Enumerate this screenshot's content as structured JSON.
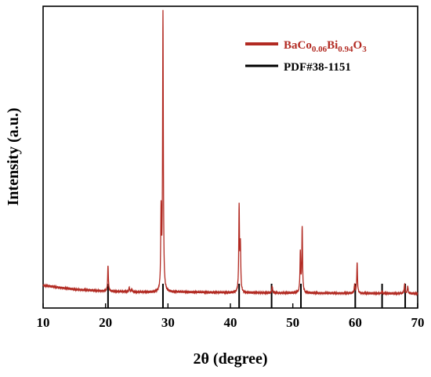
{
  "chart_data": {
    "type": "line",
    "xlabel": "2θ (degree)",
    "ylabel": "Intensity (a.u.)",
    "xlim": [
      10,
      70
    ],
    "xticks": [
      10,
      20,
      30,
      40,
      50,
      60,
      70
    ],
    "ylim": [
      0,
      100
    ],
    "y_ticks_shown": false,
    "grid": false,
    "legend_position": "top-right",
    "legend": {
      "sample": {
        "base": "BaCo",
        "sub1": "0.06",
        "mid": "Bi",
        "sub2": "0.94",
        "end": "O",
        "sub3": "3"
      },
      "reference": "PDF#38-1151"
    },
    "colors": {
      "sample": "#b22a22",
      "reference": "#000000"
    },
    "series": [
      {
        "name": "BaCo0.06Bi0.94O3",
        "baseline": [
          [
            10,
            7.5
          ],
          [
            15,
            6.2
          ],
          [
            20,
            5.6
          ],
          [
            25,
            5.3
          ],
          [
            28,
            5.2
          ],
          [
            32,
            5.3
          ],
          [
            40,
            5.1
          ],
          [
            50,
            5.0
          ],
          [
            60,
            4.9
          ],
          [
            70,
            4.8
          ]
        ],
        "peaks": [
          {
            "x": 20.4,
            "height": 8.5
          },
          {
            "x": 23.8,
            "height": 1.5
          },
          {
            "x": 24.2,
            "height": 1.0
          },
          {
            "x": 28.9,
            "height": 26.0
          },
          {
            "x": 29.2,
            "height": 92.0
          },
          {
            "x": 41.4,
            "height": 28.0
          },
          {
            "x": 41.6,
            "height": 15.0
          },
          {
            "x": 46.7,
            "height": 2.3
          },
          {
            "x": 51.2,
            "height": 13.0
          },
          {
            "x": 51.5,
            "height": 21.5
          },
          {
            "x": 59.9,
            "height": 3.0
          },
          {
            "x": 60.3,
            "height": 10.0
          },
          {
            "x": 64.3,
            "height": 0.6
          },
          {
            "x": 67.9,
            "height": 3.2
          },
          {
            "x": 68.4,
            "height": 2.5
          }
        ]
      },
      {
        "name": "PDF#38-1151",
        "sticks_x": [
          20.4,
          29.2,
          41.4,
          46.6,
          51.3,
          60.0,
          64.3,
          68.0
        ]
      }
    ]
  }
}
